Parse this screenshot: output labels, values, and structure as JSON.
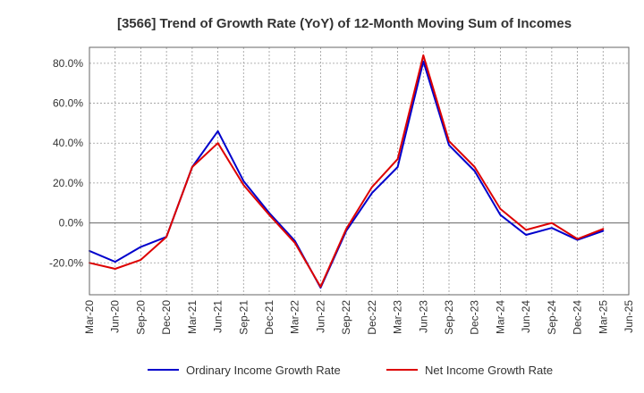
{
  "chart_data": {
    "type": "line",
    "title": "[3566]  Trend of Growth Rate (YoY) of 12-Month Moving Sum of Incomes",
    "x": [
      "Mar-20",
      "Jun-20",
      "Sep-20",
      "Dec-20",
      "Mar-21",
      "Jun-21",
      "Sep-21",
      "Dec-21",
      "Mar-22",
      "Jun-22",
      "Sep-22",
      "Dec-22",
      "Mar-23",
      "Jun-23",
      "Sep-23",
      "Dec-23",
      "Mar-24",
      "Jun-24",
      "Sep-24",
      "Dec-24",
      "Mar-25"
    ],
    "x_tick_labels": [
      "Mar-20",
      "Jun-20",
      "Sep-20",
      "Dec-20",
      "Mar-21",
      "Jun-21",
      "Sep-21",
      "Dec-21",
      "Mar-22",
      "Jun-22",
      "Sep-22",
      "Dec-22",
      "Mar-23",
      "Jun-23",
      "Sep-23",
      "Dec-23",
      "Mar-24",
      "Jun-24",
      "Sep-24",
      "Dec-24",
      "Mar-25",
      "Jun-25"
    ],
    "y_ticks": [
      80,
      60,
      40,
      20,
      0,
      -20
    ],
    "y_tick_labels": [
      "80.0%",
      "60.0%",
      "40.0%",
      "20.0%",
      "0.0%",
      "-20.0%"
    ],
    "ylim": [
      -36,
      88
    ],
    "grid": true,
    "legend_position": "bottom",
    "series": [
      {
        "name": "Ordinary Income Growth Rate",
        "color": "#0000cc",
        "values": [
          -14,
          -19.5,
          -12,
          -7,
          28,
          46,
          21,
          5,
          -9,
          -32.5,
          -4,
          15,
          28,
          81,
          39,
          26,
          4,
          -6,
          -2.5,
          -8.5,
          -4
        ]
      },
      {
        "name": "Net Income Growth Rate",
        "color": "#dd0000",
        "values": [
          -20,
          -23,
          -18.5,
          -7,
          28,
          40,
          19,
          4,
          -10,
          -32,
          -3,
          18,
          32,
          84,
          41,
          28,
          7,
          -3.5,
          0,
          -8,
          -3
        ]
      }
    ]
  }
}
